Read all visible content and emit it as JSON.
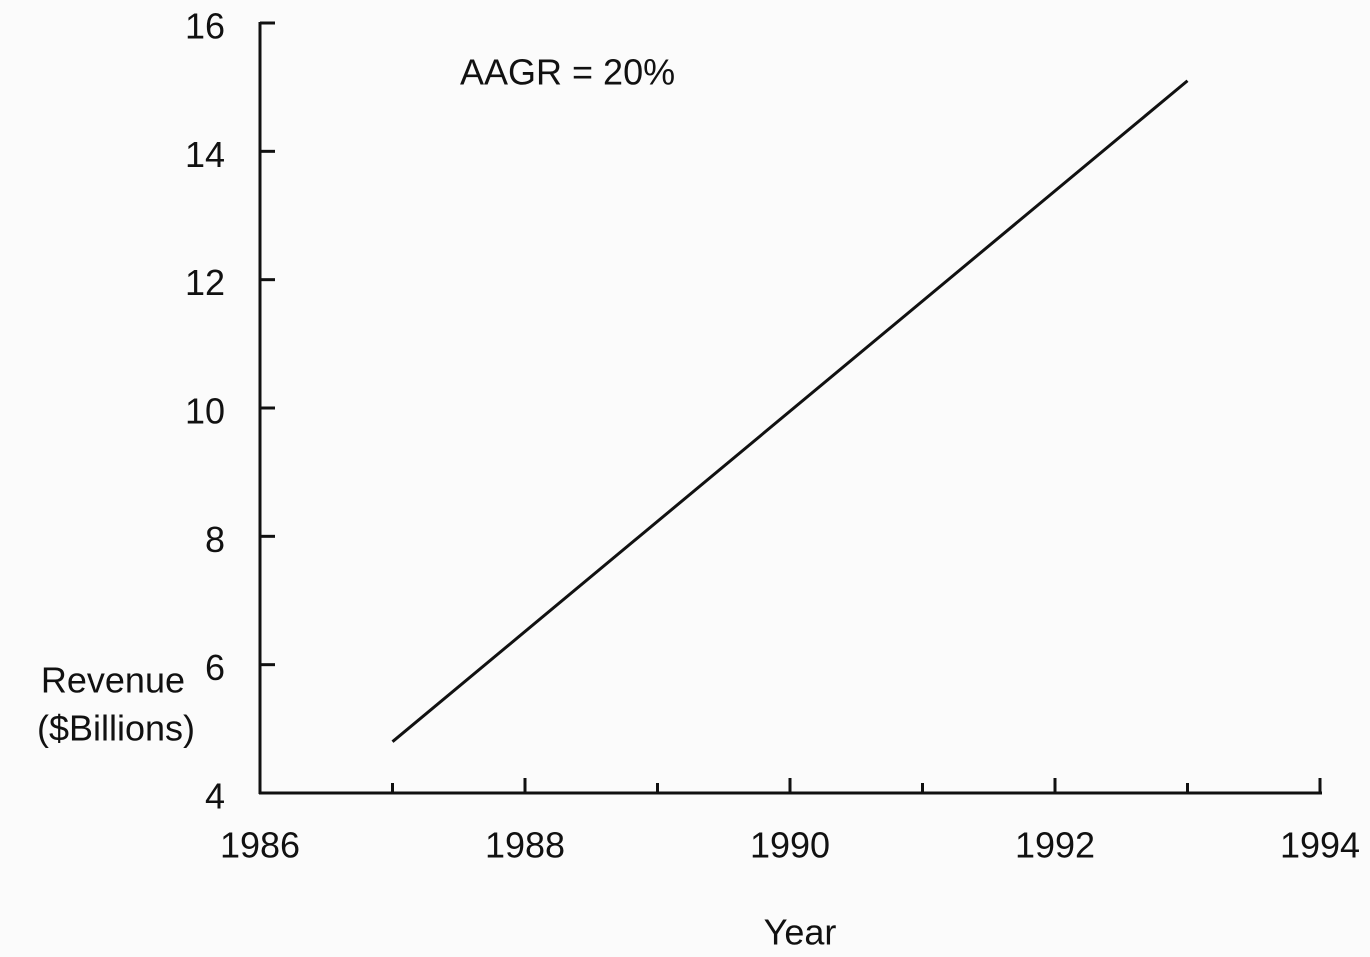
{
  "chart_data": {
    "type": "line",
    "annotation": "AAGR = 20%",
    "xlabel": "Year",
    "ylabel": [
      "Revenue",
      "($Billions)"
    ],
    "x": [
      1987,
      1993
    ],
    "series": [
      {
        "color": "#111111",
        "values": [
          4.8,
          15.1
        ]
      }
    ],
    "xlim": [
      1986,
      1994
    ],
    "xticks": [
      1986,
      1988,
      1990,
      1992,
      1994
    ],
    "xminorticks": [
      1987,
      1989,
      1991,
      1993
    ],
    "ylim": [
      4,
      16
    ],
    "yticks": [
      4,
      6,
      8,
      10,
      12,
      14,
      16
    ]
  }
}
